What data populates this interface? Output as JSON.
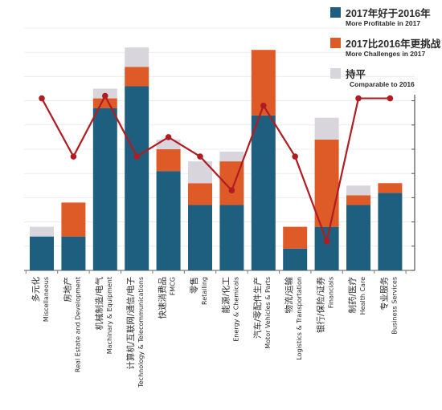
{
  "chart_data": {
    "type": "bar",
    "stacked": true,
    "ylim": [
      0,
      100
    ],
    "grid": true,
    "legend_position": "top-right",
    "categories": [
      {
        "zh": "多元化",
        "en": "Miscellaneous"
      },
      {
        "zh": "房地产",
        "en": "Real Estate and Development"
      },
      {
        "zh": "机械制造/电气",
        "en": "Machinary & Equipment"
      },
      {
        "zh": "计算机/互联网/通信/电子",
        "en": "Technology & Telecommunications"
      },
      {
        "zh": "快速消费品",
        "en": "FMCG"
      },
      {
        "zh": "零售",
        "en": "Retailing"
      },
      {
        "zh": "能源/化工",
        "en": "Energy & Chemicals"
      },
      {
        "zh": "汽车/零配件生产",
        "en": "Motor Vehicles & Parts"
      },
      {
        "zh": "物流/运输",
        "en": "Logistics & Transportation"
      },
      {
        "zh": "银行/保险/证券",
        "en": "Financials"
      },
      {
        "zh": "制药/医疗",
        "en": "Health Care"
      },
      {
        "zh": "专业服务",
        "en": "Business Services"
      }
    ],
    "series": [
      {
        "name": "2017年好于2016年",
        "name_en": "More Profitable in 2017",
        "color": "#1e5f80",
        "values": [
          14,
          14,
          67,
          76,
          41,
          27,
          27,
          64,
          9,
          18,
          27,
          32
        ]
      },
      {
        "name": "2017比2016年更挑战",
        "name_en": "More Challenges in 2017",
        "color": "#de5b28",
        "values": [
          0,
          14,
          4,
          8,
          9,
          9,
          18,
          27,
          9,
          36,
          4,
          4
        ]
      },
      {
        "name": "持平",
        "name_en": "Comparable to 2016",
        "color": "#d9d5dd",
        "values": [
          4,
          0,
          4,
          8,
          4,
          9,
          4,
          0,
          0,
          9,
          4,
          0
        ]
      }
    ],
    "line": {
      "color": "#b01c22",
      "values": [
        71,
        47,
        72,
        47,
        55,
        47,
        33,
        68,
        47,
        12,
        71,
        71
      ]
    }
  },
  "legend": [
    {
      "zh": "2017年好于2016年",
      "en": "More Profitable in 2017",
      "color": "#1e5f80"
    },
    {
      "zh": "2017比2016年更挑战",
      "en": "More Challenges in 2017",
      "color": "#de5b28"
    },
    {
      "zh": "持平",
      "en": "Comparable to 2016",
      "color": "#d9d5dd"
    }
  ]
}
